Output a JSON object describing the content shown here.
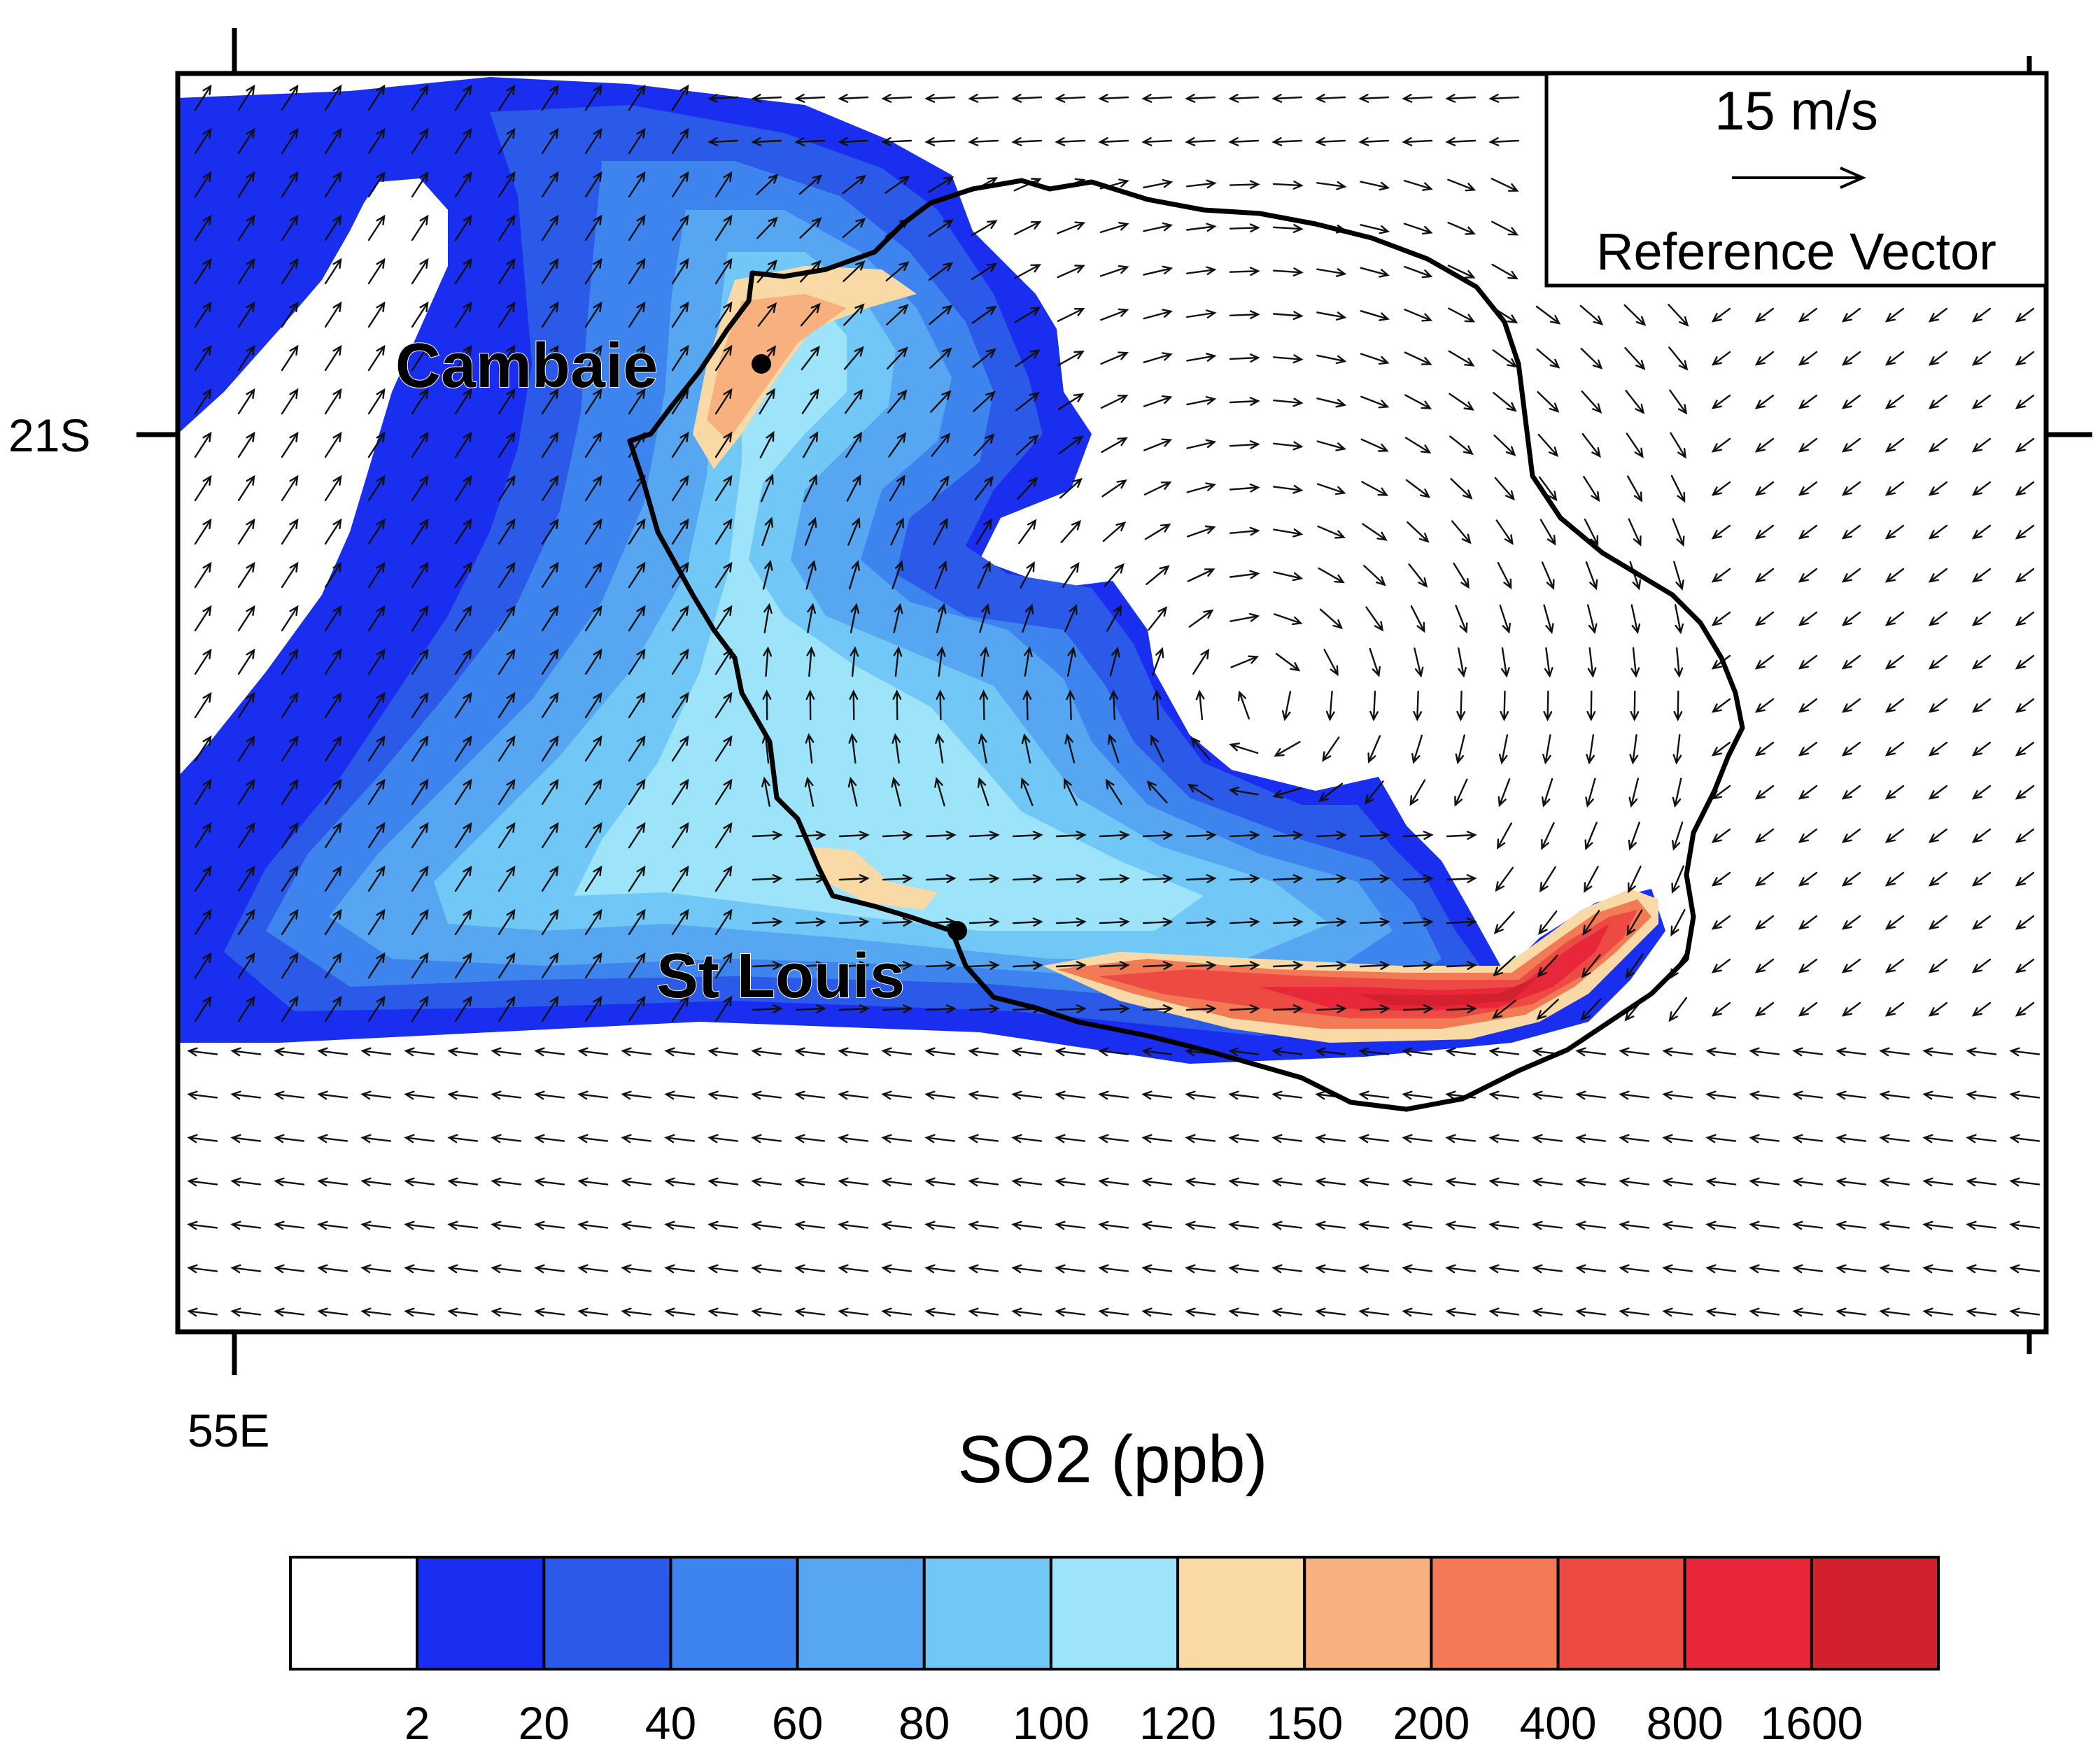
{
  "map": {
    "lat_label": "21S",
    "lon_label": "55E",
    "places": [
      {
        "name": "Cambaie"
      },
      {
        "name": "St Louis"
      }
    ]
  },
  "reference_vector": {
    "speed_label": "15 m/s",
    "title": "Reference Vector"
  },
  "colorbar": {
    "title": "SO2 (ppb)",
    "levels": [
      "2",
      "20",
      "40",
      "60",
      "80",
      "100",
      "120",
      "150",
      "200",
      "400",
      "800",
      "1600"
    ],
    "colors": [
      "#ffffff",
      "#1a2ef0",
      "#2b5ae8",
      "#3d84ef",
      "#56a6f2",
      "#71c8f6",
      "#9de4fa",
      "#f9d9a6",
      "#f7b07e",
      "#f27a55",
      "#ec4a42",
      "#e8283a",
      "#d3202f"
    ]
  }
}
